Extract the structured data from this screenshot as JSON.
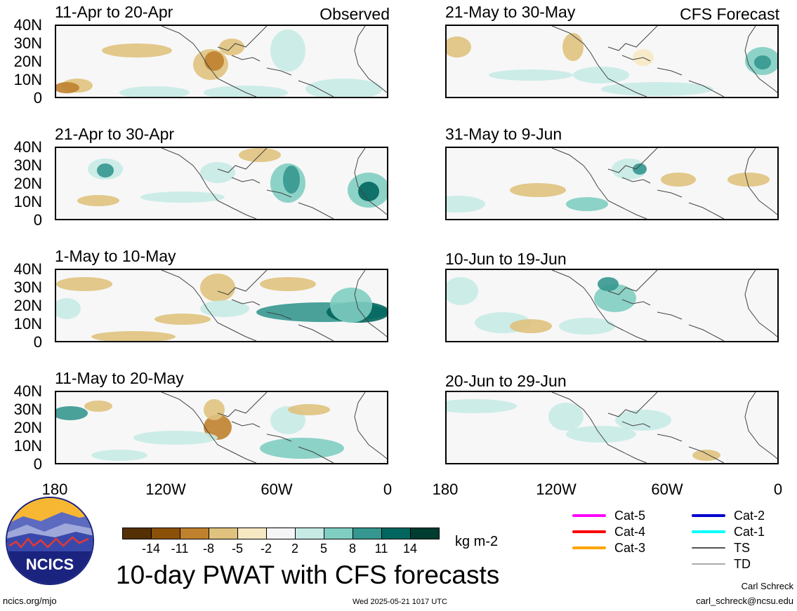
{
  "panels_left": [
    {
      "title": "11-Apr to 20-Apr",
      "tag": "Observed"
    },
    {
      "title": "21-Apr to 30-Apr",
      "tag": ""
    },
    {
      "title": "1-May to 10-May",
      "tag": ""
    },
    {
      "title": "11-May to 20-May",
      "tag": ""
    }
  ],
  "panels_right": [
    {
      "title": "21-May to 30-May",
      "tag": "CFS Forecast"
    },
    {
      "title": "31-May to 9-Jun",
      "tag": ""
    },
    {
      "title": "10-Jun to 19-Jun",
      "tag": ""
    },
    {
      "title": "20-Jun to 29-Jun",
      "tag": ""
    }
  ],
  "lat_labels": [
    "40N",
    "30N",
    "20N",
    "10N",
    "0"
  ],
  "lon_labels": [
    "180",
    "120W",
    "60W",
    "0"
  ],
  "colorbar": {
    "labels": [
      "-14",
      "-11",
      "-8",
      "-5",
      "-2",
      "2",
      "5",
      "8",
      "11",
      "14"
    ],
    "colors": [
      "#543005",
      "#8c5109",
      "#bf812d",
      "#dfc27d",
      "#f6e8c3",
      "#f5f5f5",
      "#c7eae5",
      "#80cdc1",
      "#35978f",
      "#01665e",
      "#003c30"
    ],
    "units": "kg m-2"
  },
  "storm_legend": [
    {
      "label": "Cat-5",
      "color": "#ff00ff"
    },
    {
      "label": "Cat-4",
      "color": "#ff0000"
    },
    {
      "label": "Cat-3",
      "color": "#ffa500"
    },
    {
      "label": "Cat-2",
      "color": "#0000cd"
    },
    {
      "label": "Cat-1",
      "color": "#00ffff"
    },
    {
      "label": "TS",
      "color": "#555555"
    },
    {
      "label": "TD",
      "color": "#aaaaaa"
    }
  ],
  "logo_text": "NCICS",
  "main_title": "10-day PWAT with CFS forecasts",
  "footer": {
    "url": "ncics.org/mjo",
    "timestamp": "Wed 2025-05-21 1017 UTC",
    "author": "Carl Schreck",
    "email": "carl_schreck@ncsu.edu"
  }
}
